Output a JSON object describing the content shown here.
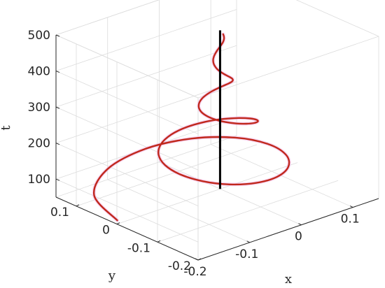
{
  "chart_data": {
    "type": "line",
    "projection": "3d",
    "title": "",
    "xlabel": "x",
    "ylabel": "y",
    "zlabel": "t",
    "xlim": [
      -0.2,
      0.15
    ],
    "ylim": [
      -0.2,
      0.15
    ],
    "zlim": [
      50,
      500
    ],
    "xticks": [
      -0.2,
      -0.1,
      0,
      0.1
    ],
    "yticks": [
      0.1,
      0,
      -0.1,
      -0.2
    ],
    "zticks": [
      100,
      200,
      300,
      400,
      500
    ],
    "xtick_labels": [
      "-0.2",
      "-0.1",
      "0",
      "0.1"
    ],
    "ytick_labels": [
      "0.1",
      "0",
      "-0.1",
      "-0.2"
    ],
    "ztick_labels": [
      "100",
      "200",
      "300",
      "400",
      "500"
    ],
    "grid": true,
    "series": [
      {
        "style": "spiral",
        "color": "#c0281c",
        "x": [
          -0.1993,
          -0.1689,
          -0.0952,
          -0.0106,
          0.0597,
          0.1037,
          0.1173,
          0.1039,
          0.0709,
          0.0274,
          -0.0173,
          -0.0559,
          -0.0836,
          -0.0977,
          -0.0977,
          -0.085,
          -0.0625,
          -0.0344,
          -0.0051,
          0.0215,
          0.0426,
          0.0562,
          0.0613,
          0.0586,
          0.0493,
          0.0353,
          0.019,
          0.0025,
          -0.0121,
          -0.0234,
          -0.0304,
          -0.0328,
          -0.0308,
          -0.0254,
          -0.0174,
          -0.0083,
          0.0008,
          0.0088,
          0.0149,
          0.0187,
          0.0198,
          0.0183,
          0.0148,
          0.0098,
          0.0043,
          -0.0011,
          -0.0056,
          -0.0089,
          -0.0106,
          -0.0107,
          -0.0094,
          -0.0069,
          -0.0037,
          -0.0004,
          0.0026,
          0.0049,
          0.0062,
          0.0066,
          0.006,
          0.0046,
          0.0028
        ],
        "y": [
          0.0,
          0.0955,
          0.156,
          0.1709,
          0.1456,
          0.0938,
          0.0307,
          -0.0303,
          -0.078,
          -0.1056,
          -0.1102,
          -0.0944,
          -0.064,
          -0.0264,
          0.0113,
          0.0435,
          0.0661,
          0.077,
          0.0761,
          0.0651,
          0.0468,
          0.025,
          0.0031,
          -0.0159,
          -0.0302,
          -0.0387,
          -0.0408,
          -0.0374,
          -0.0295,
          -0.0188,
          -0.0071,
          0.004,
          0.0131,
          0.0193,
          0.0224,
          0.0223,
          0.0194,
          0.0145,
          0.0084,
          0.002,
          -0.0038,
          -0.0083,
          -0.0113,
          -0.0126,
          -0.0122,
          -0.0104,
          -0.0076,
          -0.0041,
          -0.0006,
          0.0026,
          0.0051,
          0.0066,
          0.0071,
          0.0067,
          0.0055,
          0.0037,
          0.0016,
          -0.0004,
          -0.0021,
          -0.0034,
          -0.004
        ],
        "t": [
          60,
          67,
          74,
          81,
          88,
          95,
          102,
          109,
          116,
          123,
          130,
          137,
          144,
          151,
          158,
          165,
          172,
          179,
          186,
          193,
          200,
          207,
          214,
          221,
          228,
          235,
          242,
          249,
          256,
          263,
          270,
          277,
          284,
          291,
          298,
          305,
          312,
          319,
          326,
          333,
          340,
          347,
          354,
          361,
          368,
          375,
          382,
          389,
          396,
          403,
          410,
          417,
          424,
          431,
          438,
          445,
          452,
          459,
          466,
          473,
          480
        ]
      },
      {
        "style": "vertical",
        "color": "#000000",
        "x": [
          0,
          0
        ],
        "y": [
          0,
          0
        ],
        "t": [
          50,
          490
        ]
      }
    ]
  }
}
